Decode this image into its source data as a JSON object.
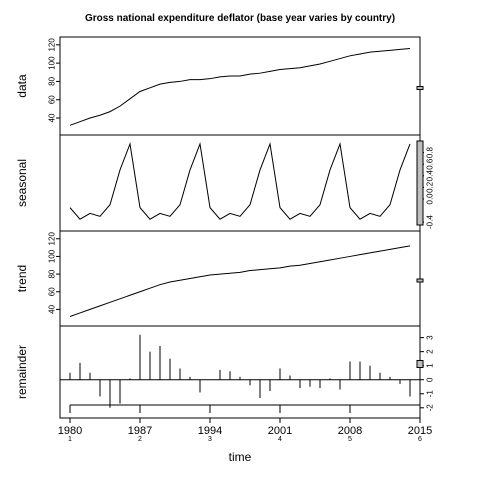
{
  "chart_data": {
    "type": "line",
    "title": "Gross national expenditure deflator (base year varies by country)",
    "xlabel": "time",
    "x_ticks": [
      "1980",
      "1987",
      "1994",
      "2001",
      "2008",
      "2015"
    ],
    "x_subticks": [
      "1",
      "2",
      "3",
      "4",
      "5",
      "6"
    ],
    "x_range": [
      1979,
      2015
    ],
    "panels": [
      {
        "name": "data",
        "ylabel": "data",
        "type": "line",
        "ylim": [
          28,
          122
        ],
        "yticks": [
          "40",
          "60",
          "80",
          "100",
          "120"
        ],
        "x": [
          1980,
          1981,
          1982,
          1983,
          1984,
          1985,
          1986,
          1987,
          1988,
          1989,
          1990,
          1991,
          1992,
          1993,
          1994,
          1995,
          1996,
          1997,
          1998,
          1999,
          2000,
          2001,
          2002,
          2003,
          2004,
          2005,
          2006,
          2007,
          2008,
          2009,
          2010,
          2011,
          2012,
          2013,
          2014
        ],
        "values": [
          32,
          36,
          40,
          43,
          47,
          53,
          61,
          69,
          73,
          77,
          79,
          80,
          82,
          82,
          83,
          85,
          86,
          86,
          88,
          89,
          91,
          93,
          94,
          95,
          97,
          99,
          102,
          105,
          108,
          110,
          112,
          113,
          114,
          115,
          116
        ]
      },
      {
        "name": "seasonal",
        "ylabel": "seasonal",
        "type": "line",
        "ylim": [
          -0.45,
          1.0
        ],
        "yticks": [
          "-0.4",
          "0.0",
          "0.2",
          "0.4",
          "0.6",
          "0.8"
        ],
        "x": [
          1980,
          1981,
          1982,
          1983,
          1984,
          1985,
          1986,
          1987,
          1988,
          1989,
          1990,
          1991,
          1992,
          1993,
          1994,
          1995,
          1996,
          1997,
          1998,
          1999,
          2000,
          2001,
          2002,
          2003,
          2004,
          2005,
          2006,
          2007,
          2008,
          2009,
          2010,
          2011,
          2012,
          2013,
          2014
        ],
        "values": [
          -0.15,
          -0.35,
          -0.25,
          -0.3,
          -0.1,
          0.5,
          0.95,
          -0.15,
          -0.35,
          -0.25,
          -0.3,
          -0.1,
          0.5,
          0.95,
          -0.15,
          -0.35,
          -0.25,
          -0.3,
          -0.1,
          0.5,
          0.95,
          -0.15,
          -0.35,
          -0.25,
          -0.3,
          -0.1,
          0.5,
          0.95,
          -0.15,
          -0.35,
          -0.25,
          -0.3,
          -0.1,
          0.5,
          0.95
        ]
      },
      {
        "name": "trend",
        "ylabel": "trend",
        "type": "line",
        "ylim": [
          28,
          122
        ],
        "yticks": [
          "40",
          "60",
          "80",
          "100",
          "120"
        ],
        "x": [
          1980,
          1981,
          1982,
          1983,
          1984,
          1985,
          1986,
          1987,
          1988,
          1989,
          1990,
          1991,
          1992,
          1993,
          1994,
          1995,
          1996,
          1997,
          1998,
          1999,
          2000,
          2001,
          2002,
          2003,
          2004,
          2005,
          2006,
          2007,
          2008,
          2009,
          2010,
          2011,
          2012,
          2013,
          2014
        ],
        "values": [
          32,
          36,
          40,
          44,
          48,
          52,
          56,
          60,
          64,
          68,
          71,
          73,
          75,
          77,
          79,
          80,
          81,
          82,
          84,
          85,
          86,
          87,
          89,
          90,
          92,
          94,
          96,
          98,
          100,
          102,
          104,
          106,
          108,
          110,
          112
        ]
      },
      {
        "name": "remainder",
        "ylabel": "remainder",
        "type": "bar",
        "ylim": [
          -2.3,
          3.4
        ],
        "yticks": [
          "-2",
          "-1",
          "0",
          "1",
          "2",
          "3"
        ],
        "x": [
          1980,
          1981,
          1982,
          1983,
          1984,
          1985,
          1986,
          1987,
          1988,
          1989,
          1990,
          1991,
          1992,
          1993,
          1994,
          1995,
          1996,
          1997,
          1998,
          1999,
          2000,
          2001,
          2002,
          2003,
          2004,
          2005,
          2006,
          2007,
          2008,
          2009,
          2010,
          2011,
          2012,
          2013,
          2014
        ],
        "values": [
          0.5,
          1.2,
          0.5,
          -1.2,
          -2.0,
          -1.7,
          0.1,
          3.2,
          2.0,
          2.4,
          1.5,
          0.8,
          0.2,
          -0.9,
          0.0,
          0.7,
          0.6,
          0.2,
          -0.4,
          -1.3,
          -0.8,
          0.8,
          0.3,
          -0.6,
          -0.5,
          -0.6,
          0.1,
          -0.7,
          1.3,
          1.3,
          1.0,
          0.5,
          0.2,
          -0.3,
          -1.2
        ]
      }
    ],
    "scale_bars": [
      {
        "panel": "data"
      },
      {
        "panel": "seasonal"
      },
      {
        "panel": "trend"
      },
      {
        "panel": "remainder"
      }
    ],
    "grid": false,
    "line_color": "#000000"
  }
}
